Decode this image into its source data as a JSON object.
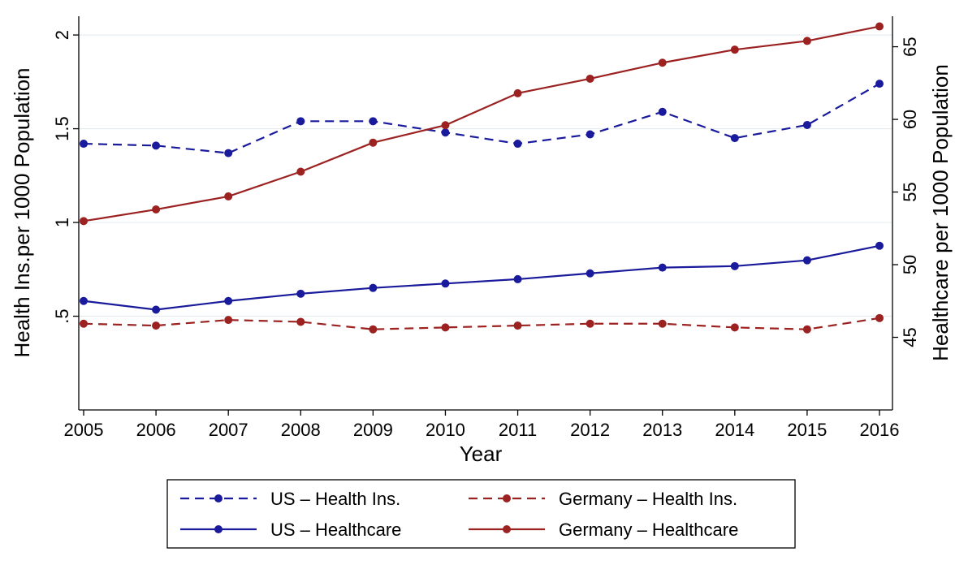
{
  "chart_data": {
    "type": "line",
    "xlabel": "Year",
    "ylabel_left": "Health Ins.per 1000 Population",
    "ylabel_right": "Healthcare per 1000 Population",
    "x": [
      2005,
      2006,
      2007,
      2008,
      2009,
      2010,
      2011,
      2012,
      2013,
      2014,
      2015,
      2016
    ],
    "x_ticks": [
      "2005",
      "2006",
      "2007",
      "2008",
      "2009",
      "2010",
      "2011",
      "2012",
      "2013",
      "2014",
      "2015",
      "2016"
    ],
    "y_left_range": [
      0,
      2.1
    ],
    "y_left_ticks": [
      {
        "value": 0.5,
        "label": ".5"
      },
      {
        "value": 1,
        "label": "1"
      },
      {
        "value": 1.5,
        "label": "1.5"
      },
      {
        "value": 2,
        "label": "2"
      }
    ],
    "y_right_range": [
      40,
      67.1
    ],
    "y_right_ticks": [
      {
        "value": 45,
        "label": "45"
      },
      {
        "value": 50,
        "label": "50"
      },
      {
        "value": 55,
        "label": "55"
      },
      {
        "value": 60,
        "label": "60"
      },
      {
        "value": 65,
        "label": "65"
      }
    ],
    "grid": "horizontal",
    "legend_position": "bottom",
    "series": [
      {
        "name": "US – Health Ins.",
        "axis": "left",
        "color": "#1a1a9c",
        "style": "dashed",
        "values": [
          1.42,
          1.41,
          1.37,
          1.54,
          1.54,
          1.48,
          1.42,
          1.47,
          1.59,
          1.45,
          1.52,
          1.74
        ]
      },
      {
        "name": "Germany – Health Ins.",
        "axis": "left",
        "color": "#9c2222",
        "style": "dashed",
        "values": [
          0.46,
          0.45,
          0.48,
          0.47,
          0.43,
          0.44,
          0.45,
          0.46,
          0.46,
          0.44,
          0.43,
          0.49
        ]
      },
      {
        "name": "US – Healthcare",
        "axis": "right",
        "color": "#1a1a9c",
        "style": "solid",
        "values": [
          47.5,
          46.9,
          47.5,
          48.0,
          48.4,
          48.7,
          49.0,
          49.4,
          49.8,
          49.9,
          50.3,
          51.3
        ]
      },
      {
        "name": "Germany – Healthcare",
        "axis": "right",
        "color": "#9c2222",
        "style": "solid",
        "values": [
          53.0,
          53.8,
          54.7,
          56.4,
          58.4,
          59.6,
          61.8,
          62.8,
          63.9,
          64.8,
          65.4,
          66.4
        ]
      }
    ]
  }
}
